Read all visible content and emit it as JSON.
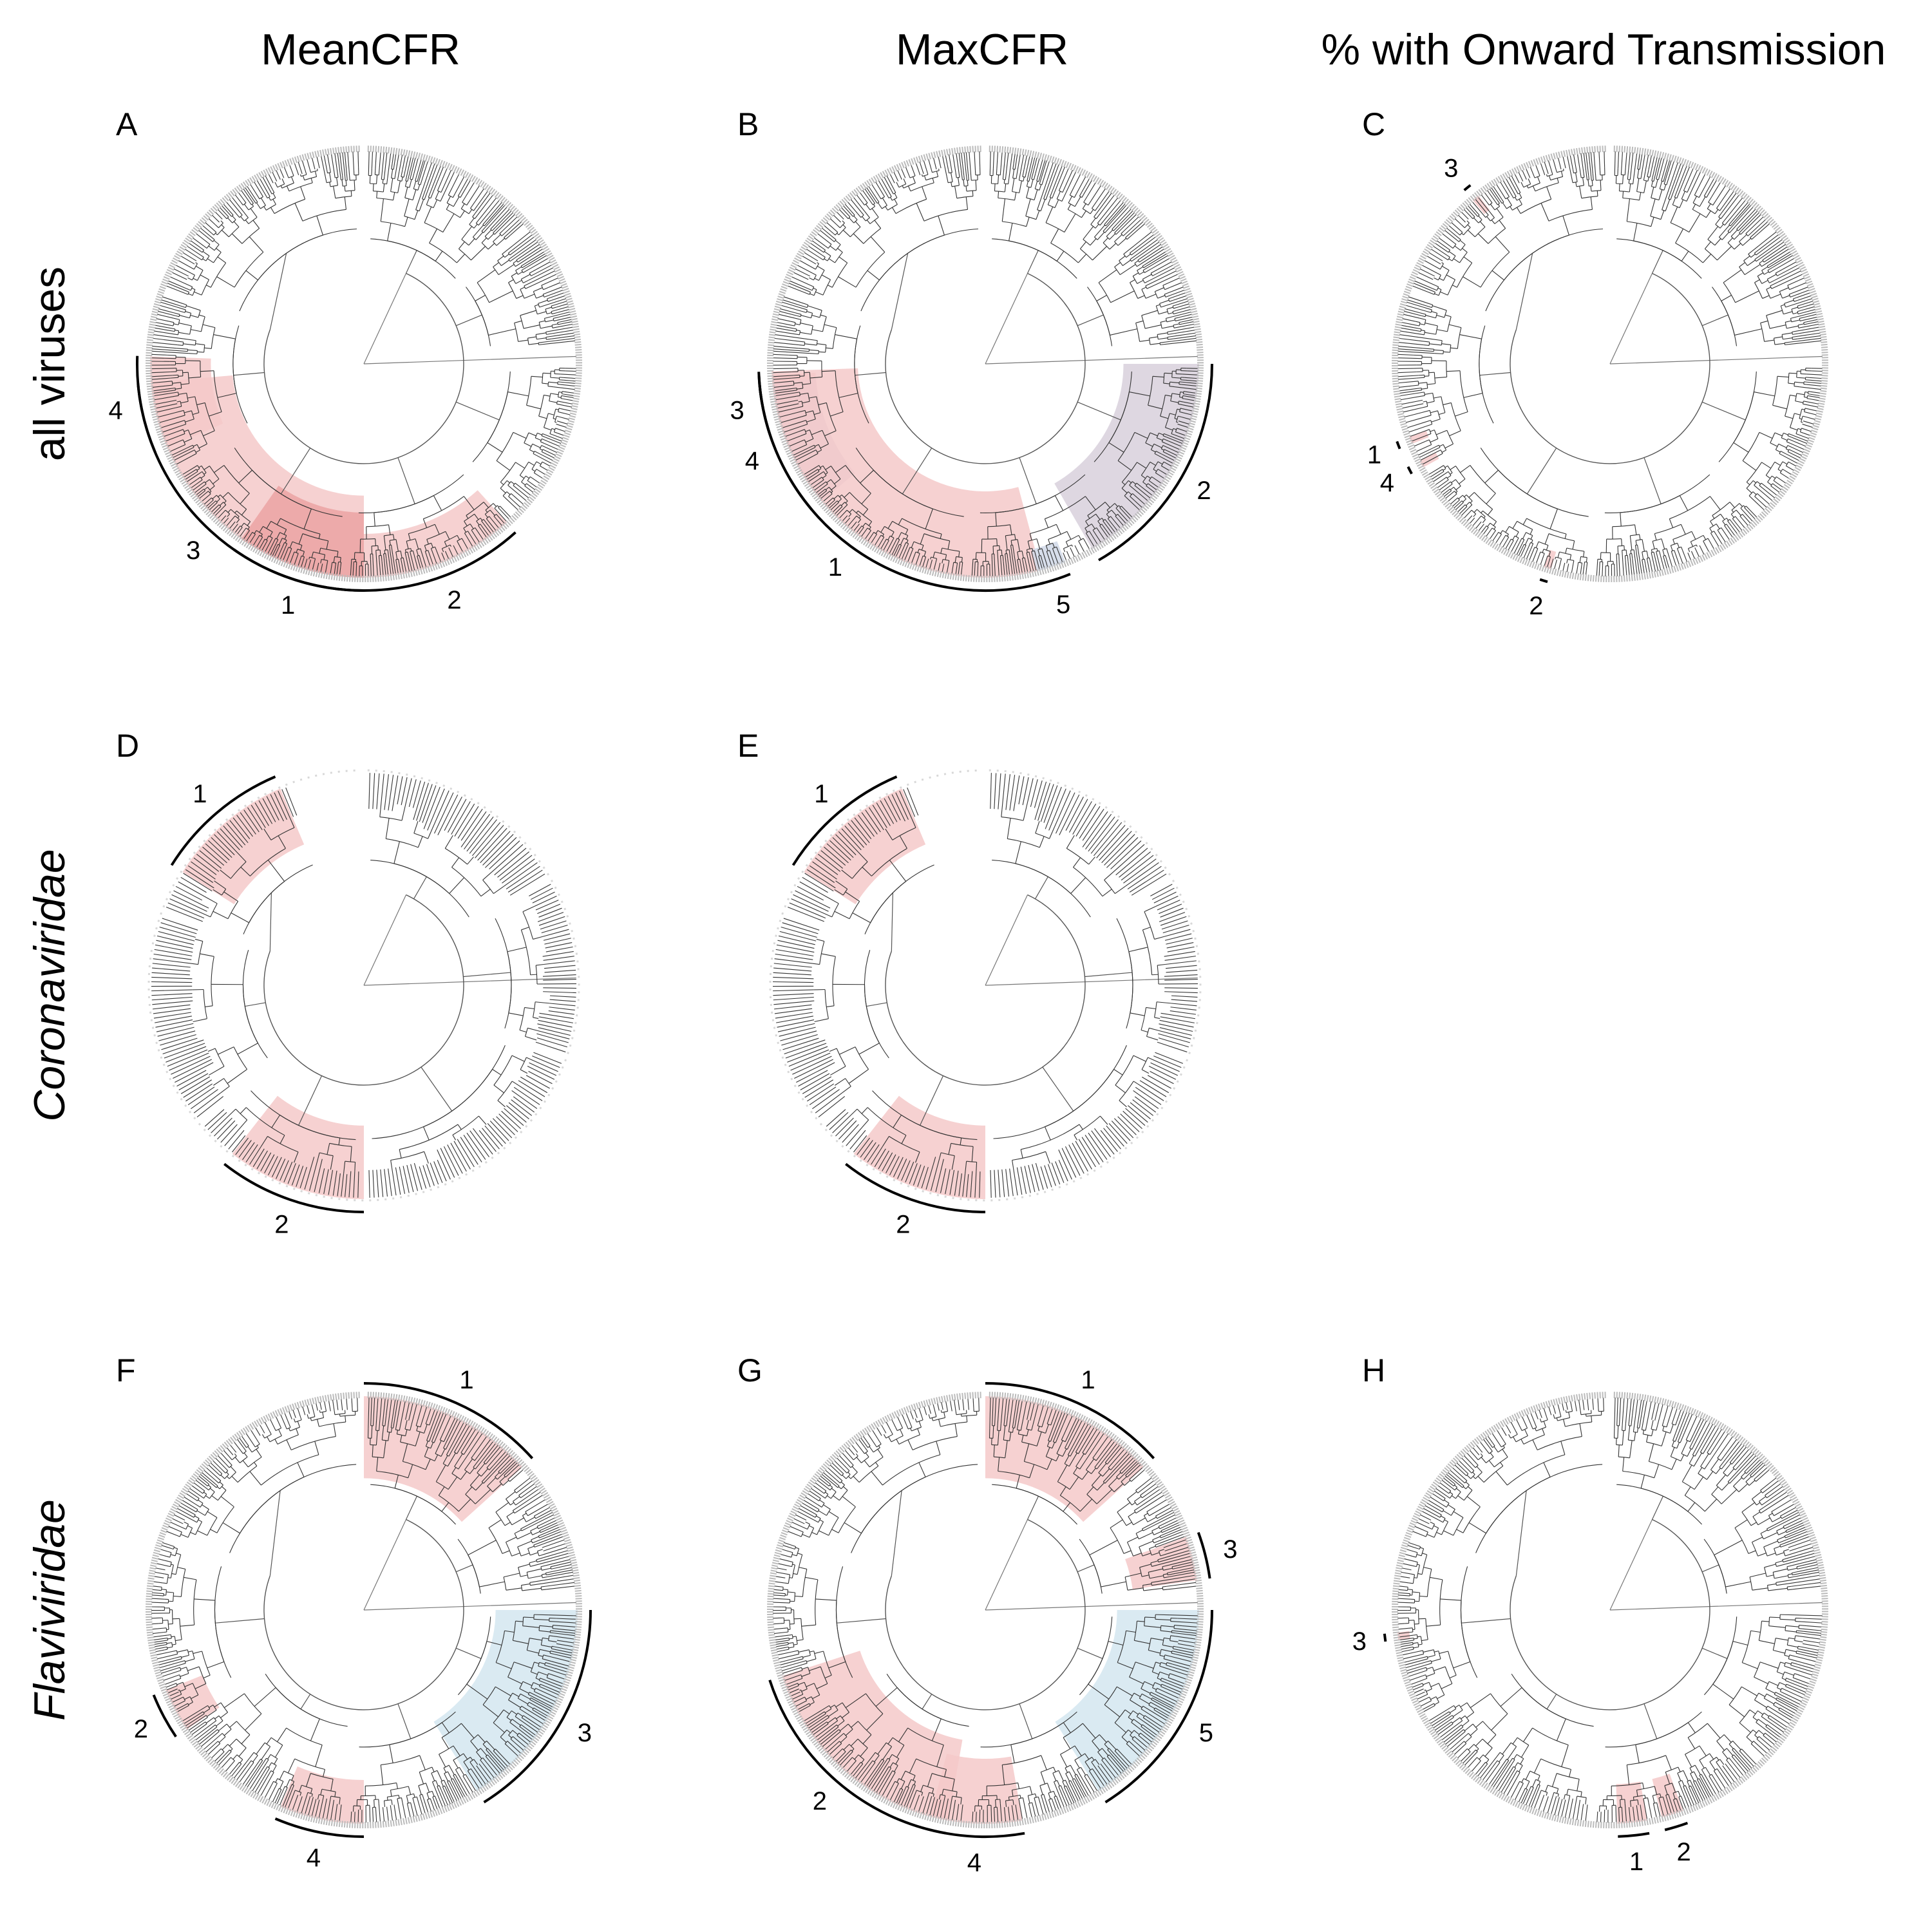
{
  "column_titles": [
    "MeanCFR",
    "MaxCFR",
    "% with Onward Transmission"
  ],
  "row_titles": [
    "all viruses",
    "Coronaviridae",
    "Flaviviridae"
  ],
  "panels": [
    {
      "label": "A",
      "row": 0,
      "col": 0,
      "tree": "all",
      "seed": 11,
      "clades": [
        {
          "id": "4",
          "start": 157,
          "end": 182,
          "inner": 0.72,
          "fill": "#f5c9c9"
        },
        {
          "id": "3",
          "start": 90,
          "end": 175,
          "inner": 0.62,
          "fill": "#f5c9c9"
        },
        {
          "id": "1",
          "start": 90,
          "end": 125,
          "inner": 0.7,
          "fill": "#eba3a3"
        },
        {
          "id": "2",
          "start": 48,
          "end": 90,
          "inner": 0.8,
          "fill": "#f5c9c9"
        }
      ]
    },
    {
      "label": "B",
      "row": 0,
      "col": 1,
      "tree": "all",
      "seed": 11,
      "clades": [
        {
          "id": "3",
          "start": 162,
          "end": 177,
          "inner": 0.8,
          "fill": "#f5c9c9"
        },
        {
          "id": "4",
          "start": 140,
          "end": 175,
          "inner": 0.8,
          "fill": "#d8d0dc"
        },
        {
          "id": "1",
          "start": 75,
          "end": 178,
          "inner": 0.6,
          "fill": "#f5c9c9"
        },
        {
          "id": "2",
          "start": 0,
          "end": 60,
          "inner": 0.65,
          "fill": "#d8d0dc"
        },
        {
          "id": "5",
          "start": 68,
          "end": 76,
          "inner": 0.9,
          "fill": "#d0d8e8"
        }
      ]
    },
    {
      "label": "C",
      "row": 0,
      "col": 2,
      "tree": "all",
      "seed": 11,
      "clades": [
        {
          "id": "3",
          "start": 230,
          "end": 232,
          "inner": 0.92,
          "fill": "#f5c9c9"
        },
        {
          "id": "1",
          "start": 158,
          "end": 160,
          "inner": 0.92,
          "fill": "#f5c9c9"
        },
        {
          "id": "4",
          "start": 151,
          "end": 153,
          "inner": 0.92,
          "fill": "#f5c9c9"
        },
        {
          "id": "2",
          "start": 106,
          "end": 108,
          "inner": 0.92,
          "fill": "#f5c9c9"
        }
      ]
    },
    {
      "label": "D",
      "row": 1,
      "col": 0,
      "tree": "corona",
      "seed": 23,
      "clades": [
        {
          "id": "1",
          "start": 212,
          "end": 247,
          "inner": 0.72,
          "fill": "#f5c9c9"
        },
        {
          "id": "2",
          "start": 90,
          "end": 128,
          "inner": 0.66,
          "fill": "#f5c9c9"
        }
      ]
    },
    {
      "label": "E",
      "row": 1,
      "col": 1,
      "tree": "corona",
      "seed": 23,
      "clades": [
        {
          "id": "1",
          "start": 212,
          "end": 247,
          "inner": 0.72,
          "fill": "#f5c9c9"
        },
        {
          "id": "2",
          "start": 90,
          "end": 128,
          "inner": 0.66,
          "fill": "#f5c9c9"
        }
      ]
    },
    {
      "label": "F",
      "row": 2,
      "col": 0,
      "tree": "flavi",
      "seed": 37,
      "clades": [
        {
          "id": "1",
          "start": 318,
          "end": 270,
          "inner": 0.62,
          "fill": "#f5c9c9"
        },
        {
          "id": "2",
          "start": 146,
          "end": 158,
          "inner": 0.82,
          "fill": "#f5c9c9"
        },
        {
          "id": "4",
          "start": 90,
          "end": 113,
          "inner": 0.8,
          "fill": "#f5c9c9"
        },
        {
          "id": "3",
          "start": 0,
          "end": 58,
          "inner": 0.62,
          "fill": "#d4e6f0"
        }
      ]
    },
    {
      "label": "G",
      "row": 2,
      "col": 1,
      "tree": "flavi",
      "seed": 37,
      "clades": [
        {
          "id": "1",
          "start": 318,
          "end": 270,
          "inner": 0.62,
          "fill": "#f5c9c9"
        },
        {
          "id": "3",
          "start": 340,
          "end": 352,
          "inner": 0.7,
          "fill": "#f5c9c9"
        },
        {
          "id": "2",
          "start": 100,
          "end": 162,
          "inner": 0.62,
          "fill": "#f5c9c9"
        },
        {
          "id": "4",
          "start": 80,
          "end": 105,
          "inner": 0.7,
          "fill": "#f5c9c9"
        },
        {
          "id": "5",
          "start": 0,
          "end": 58,
          "inner": 0.62,
          "fill": "#d4e6f0"
        }
      ]
    },
    {
      "label": "H",
      "row": 2,
      "col": 2,
      "tree": "flavi",
      "seed": 37,
      "clades": [
        {
          "id": "3",
          "start": 172,
          "end": 174,
          "inner": 0.95,
          "fill": "#f5c9c9"
        },
        {
          "id": "1",
          "start": 80,
          "end": 88,
          "inner": 0.82,
          "fill": "#f5c9c9"
        },
        {
          "id": "2",
          "start": 70,
          "end": 76,
          "inner": 0.82,
          "fill": "#f5c9c9"
        }
      ]
    }
  ]
}
